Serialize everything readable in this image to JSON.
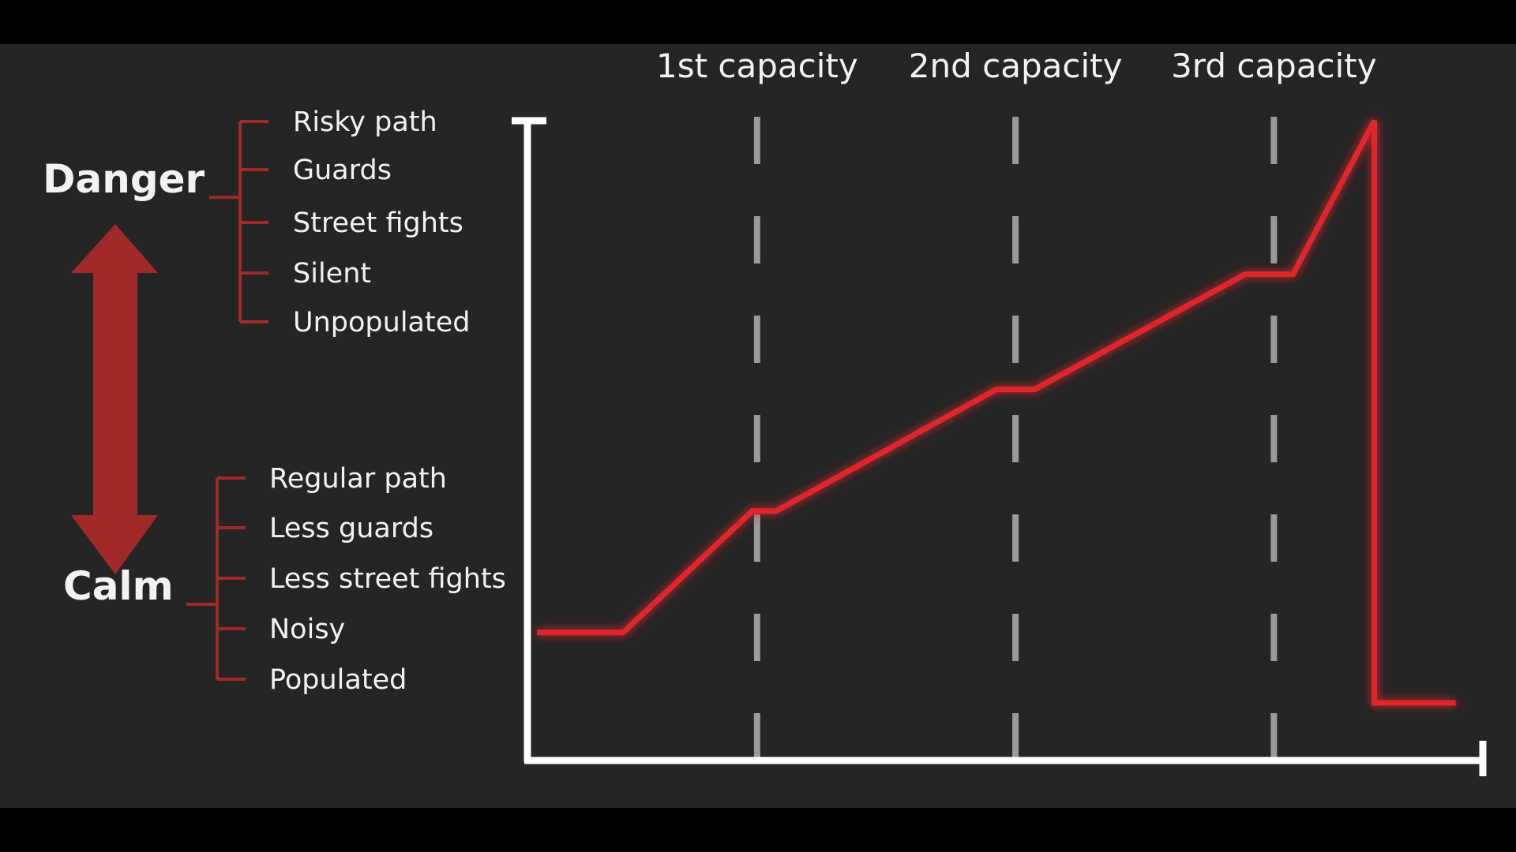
{
  "colors": {
    "background": "#252525",
    "letterbox": "#000000",
    "accent": "#a12a28",
    "line": "#e0262c",
    "axis": "#ffffff",
    "dash": "#9a9a9a"
  },
  "scale": {
    "top_label": "Danger",
    "bottom_label": "Calm",
    "arrow_icon": "double-arrow-vertical"
  },
  "danger_items": [
    "Risky path",
    "Guards",
    "Street fights",
    "Silent",
    "Unpopulated"
  ],
  "calm_items": [
    "Regular path",
    "Less guards",
    "Less street fights",
    "Noisy",
    "Populated"
  ],
  "chart_data": {
    "type": "line",
    "title": "",
    "xlabel": "",
    "ylabel": "",
    "xlim": [
      0,
      100
    ],
    "ylim": [
      0,
      100
    ],
    "grid": false,
    "legend": "none",
    "markers": [
      {
        "label": "1st capacity",
        "x": 24
      },
      {
        "label": "2nd capacity",
        "x": 51
      },
      {
        "label": "3rd capacity",
        "x": 78
      }
    ],
    "series": [
      {
        "x": [
          1,
          10,
          23.5,
          26,
          49,
          53,
          75,
          80,
          88.5,
          88.5,
          97
        ],
        "y": [
          20,
          20,
          39,
          39,
          58,
          58,
          76,
          76,
          100,
          9,
          9
        ]
      }
    ]
  }
}
